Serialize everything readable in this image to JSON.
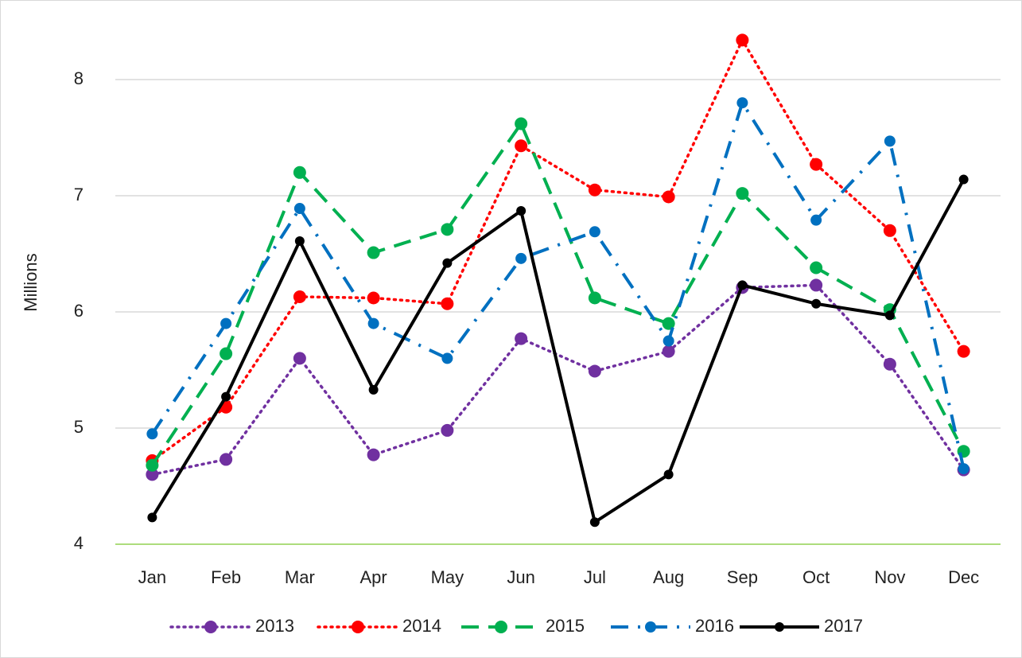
{
  "chart_data": {
    "type": "line",
    "y_label": "Millions",
    "categories": [
      "Jan",
      "Feb",
      "Mar",
      "Apr",
      "May",
      "Jun",
      "Jul",
      "Aug",
      "Sep",
      "Oct",
      "Nov",
      "Dec"
    ],
    "ylim": [
      4,
      8.5
    ],
    "yticks": [
      4,
      5,
      6,
      7,
      8
    ],
    "grid": true,
    "legend": "bottom",
    "series": [
      {
        "name": "2013",
        "color": "#7030a0",
        "values": [
          4.6,
          4.73,
          5.6,
          4.77,
          4.98,
          5.77,
          5.49,
          5.66,
          6.21,
          6.23,
          5.55,
          4.64
        ]
      },
      {
        "name": "2014",
        "color": "#ff0000",
        "values": [
          4.72,
          5.18,
          6.13,
          6.12,
          6.07,
          7.43,
          7.05,
          6.99,
          8.34,
          7.27,
          6.7,
          5.66
        ]
      },
      {
        "name": "2015",
        "color": "#00b050",
        "values": [
          4.68,
          5.64,
          7.2,
          6.51,
          6.71,
          7.62,
          6.12,
          5.9,
          7.02,
          6.38,
          6.02,
          4.8
        ]
      },
      {
        "name": "2016",
        "color": "#0070c0",
        "values": [
          4.95,
          5.9,
          6.89,
          5.9,
          5.6,
          6.46,
          6.69,
          5.75,
          7.8,
          6.79,
          7.47,
          4.65
        ]
      },
      {
        "name": "2017",
        "color": "#000000",
        "values": [
          4.23,
          5.27,
          6.61,
          5.33,
          6.42,
          6.87,
          4.19,
          4.6,
          6.23,
          6.07,
          5.97,
          7.14
        ]
      }
    ]
  }
}
